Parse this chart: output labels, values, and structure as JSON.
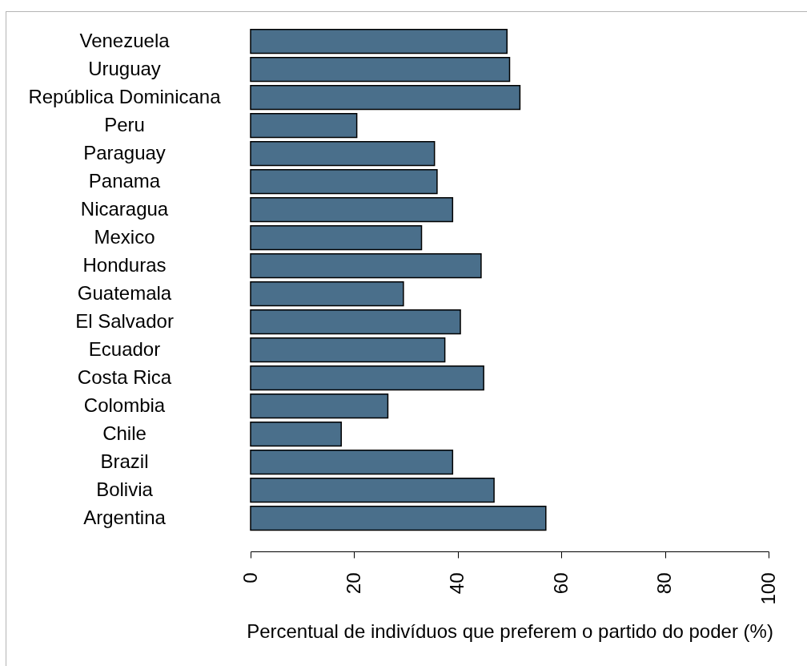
{
  "chart_data": {
    "type": "bar",
    "orientation": "horizontal",
    "categories": [
      "Venezuela",
      "Uruguay",
      "República Dominicana",
      "Peru",
      "Paraguay",
      "Panama",
      "Nicaragua",
      "Mexico",
      "Honduras",
      "Guatemala",
      "El Salvador",
      "Ecuador",
      "Costa Rica",
      "Colombia",
      "Chile",
      "Brazil",
      "Bolivia",
      "Argentina"
    ],
    "values": [
      49.5,
      50,
      52,
      20.5,
      35.5,
      36,
      39,
      33,
      44.5,
      29.5,
      40.5,
      37.5,
      45,
      26.5,
      17.5,
      39,
      47,
      57
    ],
    "color": "#4a6f8b",
    "xlabel": "Percentual de indivíduos que preferem o partido do poder (%)",
    "xlim": [
      0,
      100
    ],
    "xticks": [
      0,
      20,
      40,
      60,
      80,
      100
    ]
  }
}
